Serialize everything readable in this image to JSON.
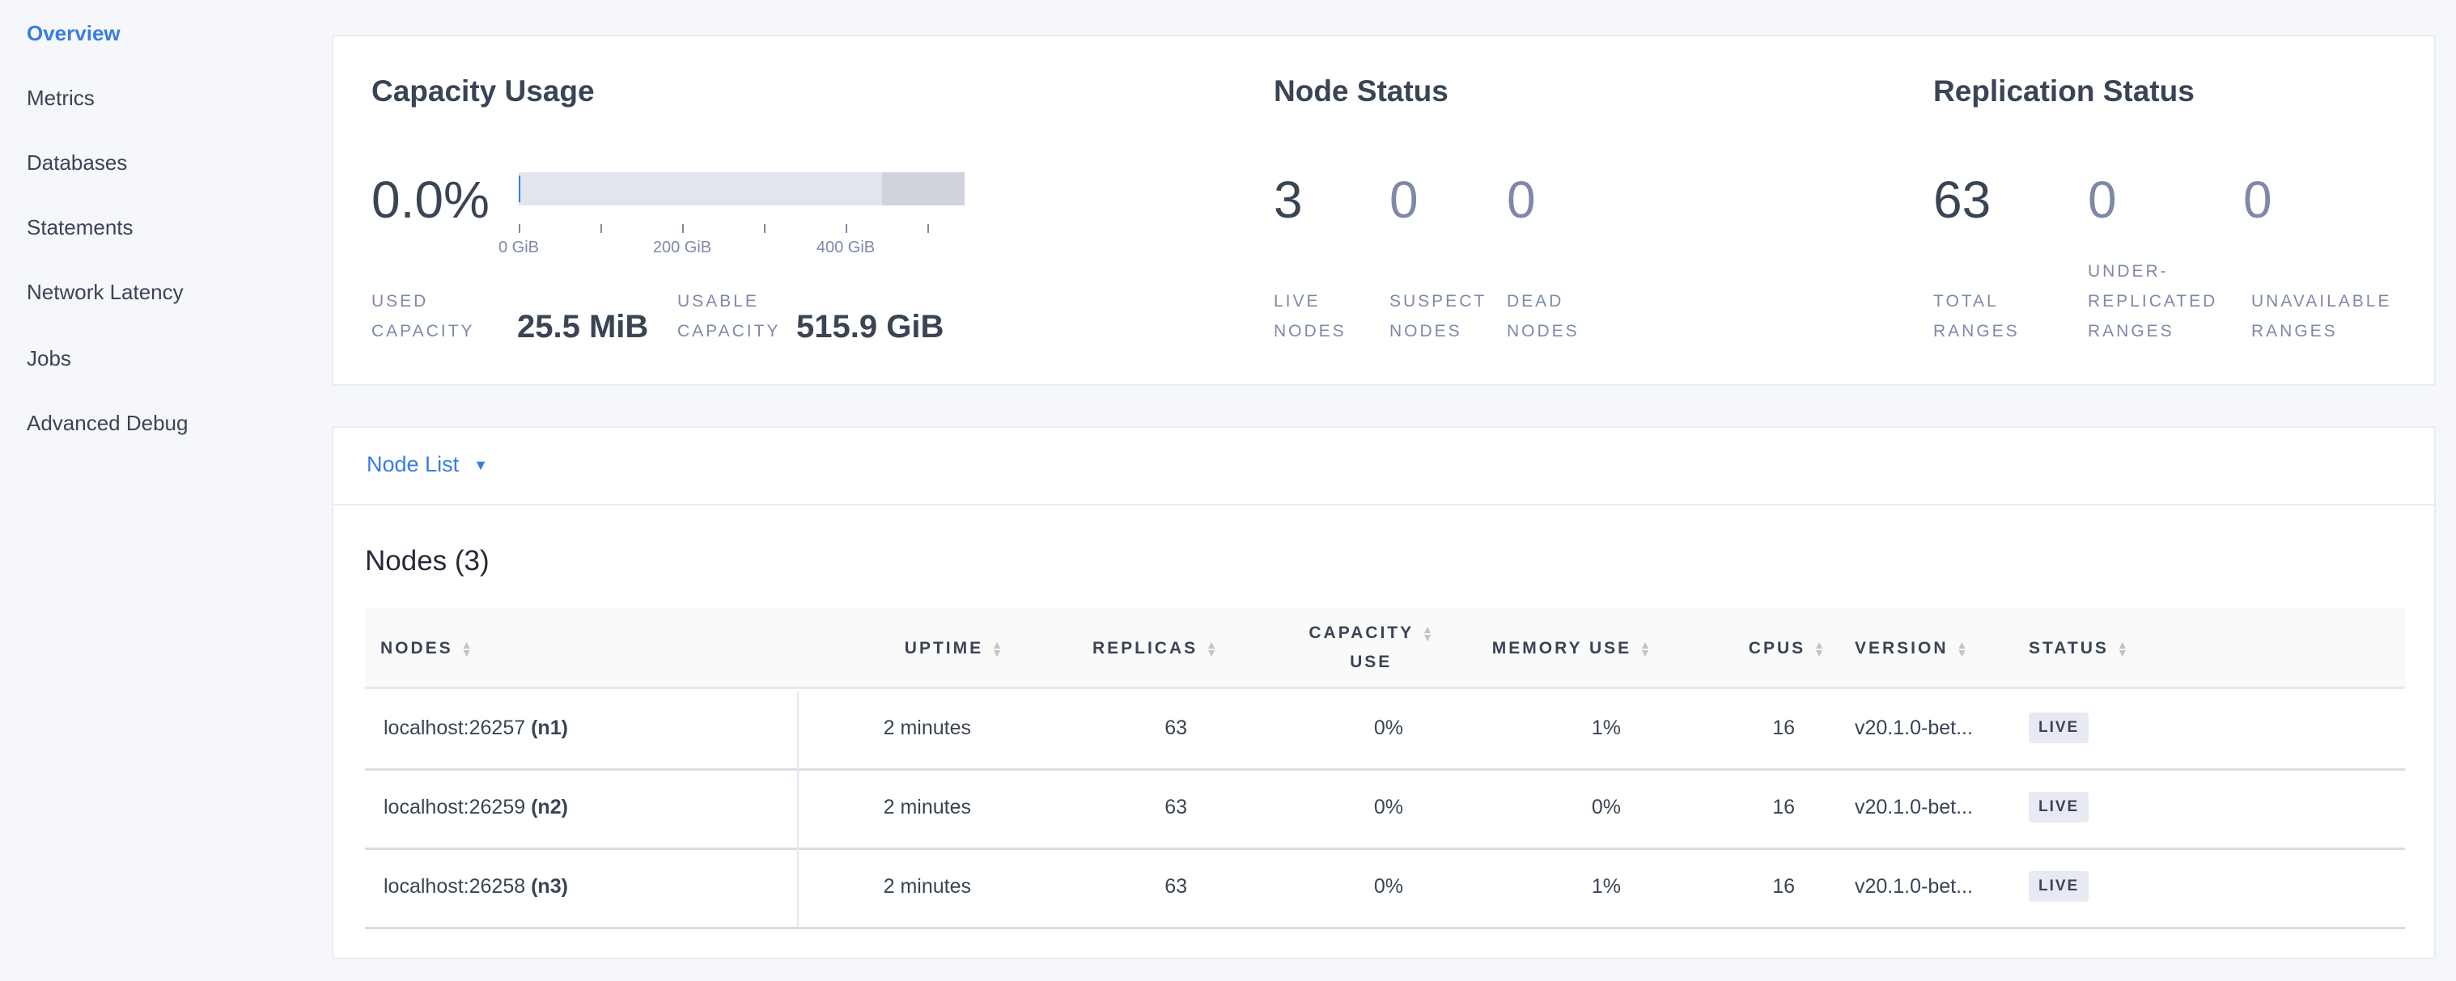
{
  "sidebar": {
    "items": [
      {
        "label": "Overview",
        "active": true
      },
      {
        "label": "Metrics"
      },
      {
        "label": "Databases"
      },
      {
        "label": "Statements"
      },
      {
        "label": "Network Latency"
      },
      {
        "label": "Jobs"
      },
      {
        "label": "Advanced Debug"
      }
    ]
  },
  "capacity": {
    "title": "Capacity Usage",
    "percent": "0.0%",
    "used_fraction": 0.0,
    "axis_ticks": [
      "0 GiB",
      "200 GiB",
      "400 GiB"
    ],
    "used_label_1": "USED",
    "used_label_2": "CAPACITY",
    "used_value": "25.5 MiB",
    "usable_label_1": "USABLE",
    "usable_label_2": "CAPACITY",
    "usable_value": "515.9 GiB"
  },
  "node_status": {
    "title": "Node Status",
    "stats": [
      {
        "value": "3",
        "l1": "LIVE",
        "l2": "NODES"
      },
      {
        "value": "0",
        "l1": "SUSPECT",
        "l2": "NODES"
      },
      {
        "value": "0",
        "l1": "DEAD",
        "l2": "NODES"
      }
    ]
  },
  "replication": {
    "title": "Replication Status",
    "stats": [
      {
        "value": "63",
        "l1": "TOTAL",
        "l2": "RANGES"
      },
      {
        "value": "0",
        "l0": "UNDER-",
        "l1": "REPLICATED",
        "l2": "RANGES"
      },
      {
        "value": "0",
        "l1": "UNAVAILABLE",
        "l2": "RANGES"
      }
    ]
  },
  "node_list": {
    "dropdown_label": "Node List",
    "table_title": "Nodes (3)",
    "columns": [
      "NODES",
      "UPTIME",
      "REPLICAS",
      "CAPACITY",
      "USE",
      "MEMORY USE",
      "CPUS",
      "VERSION",
      "STATUS"
    ],
    "rows": [
      {
        "host": "localhost:26257",
        "id": "(n1)",
        "uptime": "2 minutes",
        "replicas": "63",
        "capacity": "0%",
        "memory": "1%",
        "cpus": "16",
        "version": "v20.1.0-bet...",
        "status": "LIVE"
      },
      {
        "host": "localhost:26259",
        "id": "(n2)",
        "uptime": "2 minutes",
        "replicas": "63",
        "capacity": "0%",
        "memory": "0%",
        "cpus": "16",
        "version": "v20.1.0-bet...",
        "status": "LIVE"
      },
      {
        "host": "localhost:26258",
        "id": "(n3)",
        "uptime": "2 minutes",
        "replicas": "63",
        "capacity": "0%",
        "memory": "1%",
        "cpus": "16",
        "version": "v20.1.0-bet...",
        "status": "LIVE"
      }
    ]
  },
  "colors": {
    "accent": "#3a7de1",
    "text": "#394455",
    "muted": "#7e89a9",
    "badge_bg": "#e7eaf2"
  }
}
